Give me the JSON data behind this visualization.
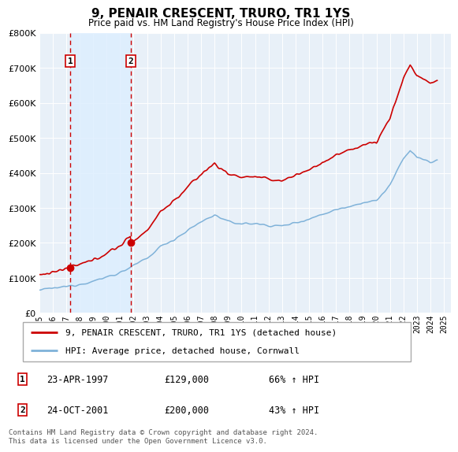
{
  "title": "9, PENAIR CRESCENT, TRURO, TR1 1YS",
  "subtitle": "Price paid vs. HM Land Registry's House Price Index (HPI)",
  "ylim": [
    0,
    800000
  ],
  "yticks": [
    0,
    100000,
    200000,
    300000,
    400000,
    500000,
    600000,
    700000,
    800000
  ],
  "sale1_date": 1997.31,
  "sale1_price": 129000,
  "sale2_date": 2001.81,
  "sale2_price": 200000,
  "property_color": "#cc0000",
  "hpi_color": "#7fb2d9",
  "shade_color": "#ddeeff",
  "plot_bg_color": "#e8f0f8",
  "grid_color": "#ffffff",
  "legend_property": "9, PENAIR CRESCENT, TRURO, TR1 1YS (detached house)",
  "legend_hpi": "HPI: Average price, detached house, Cornwall",
  "table_rows": [
    {
      "num": "1",
      "date": "23-APR-1997",
      "price": "£129,000",
      "change": "66% ↑ HPI"
    },
    {
      "num": "2",
      "date": "24-OCT-2001",
      "price": "£200,000",
      "change": "43% ↑ HPI"
    }
  ],
  "footer": "Contains HM Land Registry data © Crown copyright and database right 2024.\nThis data is licensed under the Open Government Licence v3.0.",
  "xmin": 1995,
  "xmax": 2025.5
}
